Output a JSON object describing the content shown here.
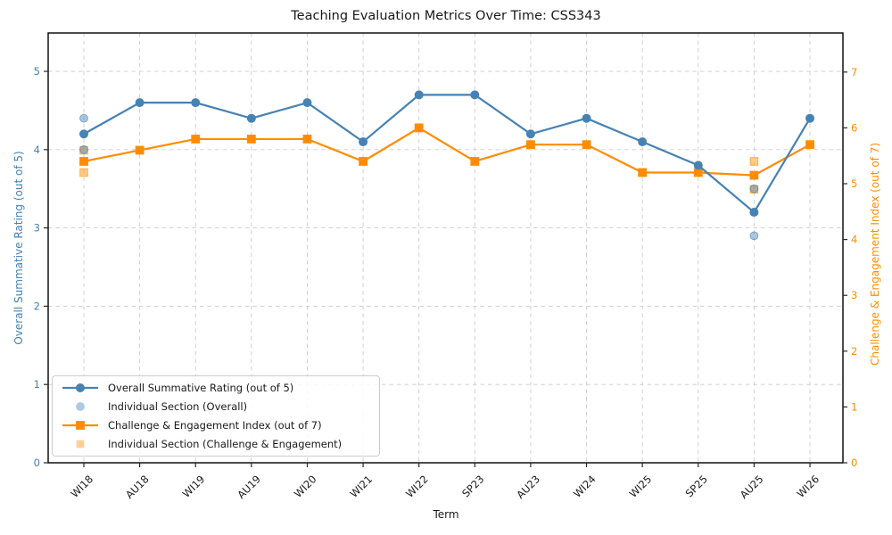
{
  "title": "Teaching Evaluation Metrics Over Time: CSS343",
  "axes": {
    "x_label": "Term",
    "y_left_label": "Overall Summative Rating (out of 5)",
    "y_right_label": "Challenge & Engagement Index (out of 7)",
    "y_left_ticks": [
      0,
      1,
      2,
      3,
      4,
      5
    ],
    "y_right_ticks": [
      0,
      1,
      2,
      3,
      4,
      5,
      6,
      7
    ]
  },
  "colors": {
    "overall": "#4682B4",
    "challenge": "#FF8C00",
    "overall_individual_light": "#AEC9E2",
    "challenge_individual_light": "#FFCF95",
    "grid": "#cccccc",
    "spine": "#000000",
    "tick": "#262626",
    "text": "#1a1a1a"
  },
  "chart_data": {
    "type": "line",
    "categories": [
      "WI18",
      "AU18",
      "WI19",
      "AU19",
      "WI20",
      "WI21",
      "WI22",
      "SP23",
      "AU23",
      "WI24",
      "WI25",
      "SP25",
      "AU25",
      "WI26"
    ],
    "series": [
      {
        "name": "Overall Summative Rating (out of 5)",
        "axis": "left",
        "marker": "circle",
        "color": "#4682B4",
        "values": [
          4.2,
          4.6,
          4.6,
          4.4,
          4.6,
          4.1,
          4.7,
          4.7,
          4.2,
          4.4,
          4.1,
          3.8,
          3.2,
          4.4
        ]
      },
      {
        "name": "Challenge & Engagement Index (out of 7)",
        "axis": "right",
        "marker": "square",
        "color": "#FF8C00",
        "values": [
          5.4,
          5.6,
          5.8,
          5.8,
          5.8,
          5.4,
          6.0,
          5.4,
          5.7,
          5.7,
          5.2,
          5.2,
          5.15,
          5.7
        ]
      }
    ],
    "scatter_series": [
      {
        "name": "Individual Section (Challenge & Engagement)",
        "axis": "right",
        "marker": "square",
        "color": "#FF8C00",
        "opacity": 0.45,
        "points": [
          {
            "category": "WI18",
            "value": 5.6
          },
          {
            "category": "WI18",
            "value": 5.2
          },
          {
            "category": "AU25",
            "value": 5.4
          },
          {
            "category": "AU25",
            "value": 4.9
          }
        ]
      },
      {
        "name": "Individual Section (Overall)",
        "axis": "left",
        "marker": "circle",
        "color": "#4682B4",
        "opacity": 0.45,
        "points": [
          {
            "category": "WI18",
            "value": 4.4
          },
          {
            "category": "WI18",
            "value": 4.0
          },
          {
            "category": "AU25",
            "value": 3.5
          },
          {
            "category": "AU25",
            "value": 2.9
          }
        ]
      }
    ],
    "ylim_left": [
      0,
      5.49
    ],
    "ylim_right": [
      0,
      7.7
    ],
    "grid": true,
    "legend_position": "lower left"
  },
  "legend": {
    "items": [
      {
        "label": "Overall Summative Rating (out of 5)",
        "marker": "line-circle",
        "color": "#4682B4"
      },
      {
        "label": "Individual Section (Overall)",
        "marker": "circle",
        "color": "#AEC9E2"
      },
      {
        "label": "Challenge & Engagement Index (out of 7)",
        "marker": "line-square",
        "color": "#FF8C00"
      },
      {
        "label": "Individual Section (Challenge & Engagement)",
        "marker": "square",
        "color": "#FFCF95"
      }
    ]
  }
}
